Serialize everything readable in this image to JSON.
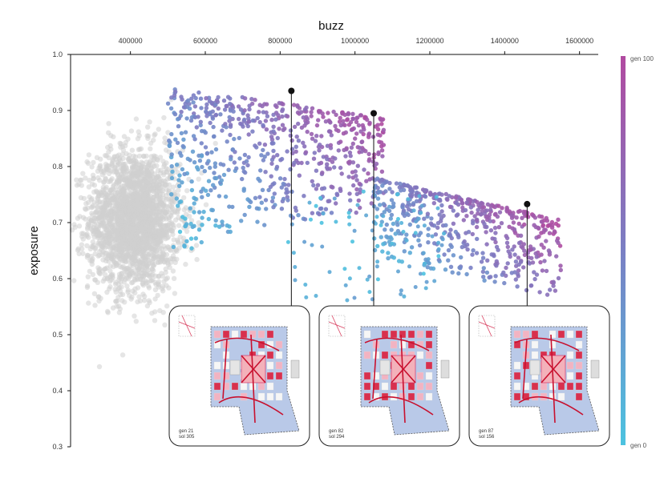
{
  "chart_data": {
    "type": "scatter",
    "title": "",
    "xlabel": "buzz",
    "ylabel": "exposure",
    "xlim": [
      240000,
      1650000
    ],
    "ylim": [
      0.3,
      1.0
    ],
    "x_ticks": [
      {
        "value": 400000,
        "label": "400000"
      },
      {
        "value": 600000,
        "label": "600000"
      },
      {
        "value": 800000,
        "label": "800000"
      },
      {
        "value": 1000000,
        "label": "1000000"
      },
      {
        "value": 1200000,
        "label": "1200000"
      },
      {
        "value": 1400000,
        "label": "1400000"
      },
      {
        "value": 1600000,
        "label": "1600000"
      }
    ],
    "y_ticks": [
      {
        "value": 0.3,
        "label": "0.3"
      },
      {
        "value": 0.4,
        "label": "0.4"
      },
      {
        "value": 0.5,
        "label": "0.5"
      },
      {
        "value": 0.6,
        "label": "0.6"
      },
      {
        "value": 0.7,
        "label": "0.7"
      },
      {
        "value": 0.8,
        "label": "0.8"
      },
      {
        "value": 0.9,
        "label": "0.9"
      },
      {
        "value": 1.0,
        "label": "1.0"
      }
    ],
    "x_axis_position": "top",
    "grid": false,
    "colorbar": {
      "label_max": "gen 100",
      "label_min": "gen 0",
      "color_max": "#b14aa0",
      "color_min": "#4cc3e0"
    },
    "background_cloud": {
      "color": "#cfcfcf",
      "center_x": 410000,
      "center_y": 0.705,
      "spread_x": 120000,
      "spread_y": 0.125
    },
    "front_clusters": [
      {
        "x_range": [
          500000,
          1080000
        ],
        "y_top_start": 0.89,
        "y_top_end": 0.87,
        "peak_y": 0.945
      },
      {
        "x_range": [
          1050000,
          1550000
        ],
        "y_top_start": 0.78,
        "y_top_end": 0.705,
        "peak_y": 0.78
      }
    ],
    "highlighted_points": [
      {
        "x": 830000,
        "y": 0.935,
        "gen_label": "gen 21",
        "sol_label": "sol 305"
      },
      {
        "x": 1050000,
        "y": 0.895,
        "gen_label": "gen 82",
        "sol_label": "sol 294"
      },
      {
        "x": 1460000,
        "y": 0.733,
        "gen_label": "gen 87",
        "sol_label": "sol 156"
      }
    ]
  }
}
